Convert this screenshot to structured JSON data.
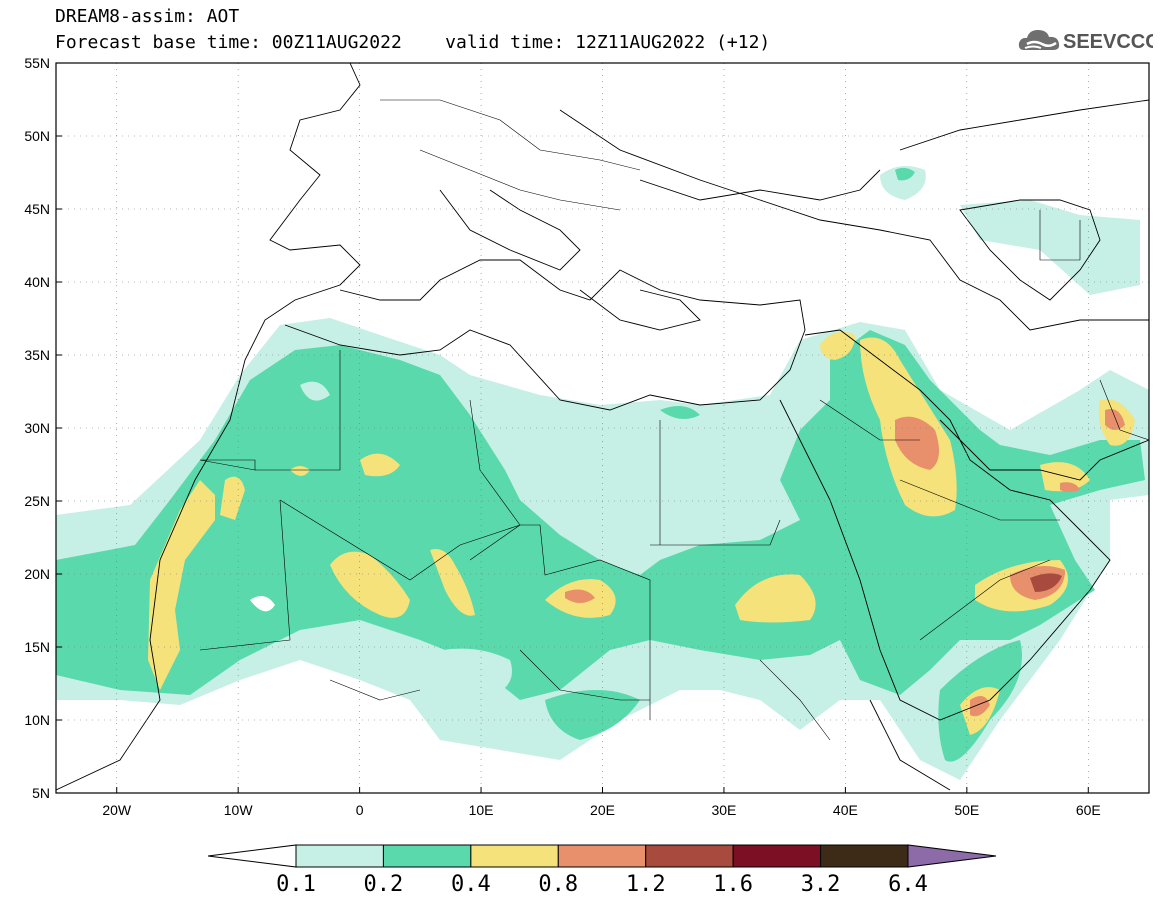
{
  "header": {
    "title_line1": "DREAM8-assim: AOT",
    "forecast_label": "Forecast base time: 00Z11AUG2022",
    "valid_label": "valid time: 12Z11AUG2022 (+12)"
  },
  "logo": {
    "text": "SEEVCCC",
    "icon": "cloud-icon"
  },
  "map": {
    "variable": "AOT",
    "lat_range": [
      5,
      55
    ],
    "lon_range": [
      -25,
      65
    ],
    "lat_ticks": [
      "5N",
      "10N",
      "15N",
      "20N",
      "25N",
      "30N",
      "35N",
      "40N",
      "45N",
      "50N",
      "55N"
    ],
    "lon_ticks": [
      "20W",
      "10W",
      "0",
      "10E",
      "20E",
      "30E",
      "40E",
      "50E",
      "60E"
    ],
    "grid": "dotted"
  },
  "colorbar": {
    "levels": [
      "0.1",
      "0.2",
      "0.4",
      "0.8",
      "1.2",
      "1.6",
      "3.2",
      "6.4"
    ],
    "colors": [
      "#ffffff",
      "#c6efe6",
      "#5ad9ac",
      "#f5e27a",
      "#e8906b",
      "#a84a3e",
      "#7d0f24",
      "#3d2a17",
      "#8d6aa8"
    ]
  }
}
